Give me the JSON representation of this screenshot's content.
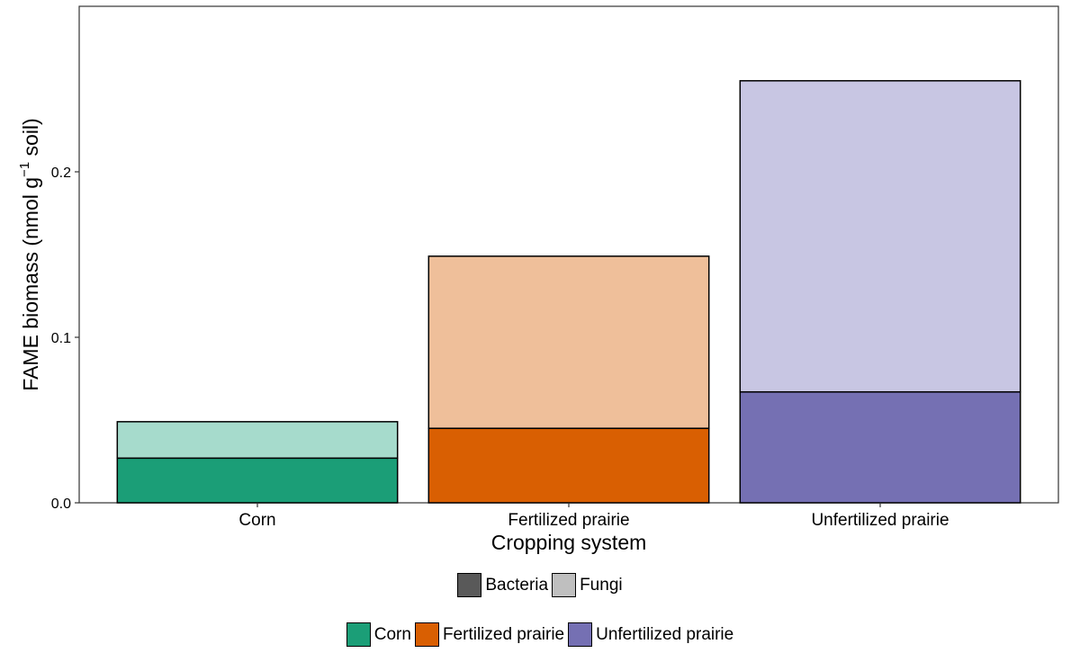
{
  "chart_data": {
    "type": "bar",
    "stacked": true,
    "categories": [
      "Corn",
      "Fertilized prairie",
      "Unfertilized prairie"
    ],
    "series": [
      {
        "name": "Bacteria",
        "values": [
          0.027,
          0.045,
          0.067
        ]
      },
      {
        "name": "Fungi",
        "values": [
          0.022,
          0.104,
          0.188
        ]
      }
    ],
    "totals": [
      0.049,
      0.149,
      0.255
    ],
    "xlabel": "Cropping system",
    "ylabel": {
      "main": "FAME biomass (nmol g",
      "superscript": "−1",
      "suffix": " soil)"
    },
    "ylim": [
      0,
      0.3
    ],
    "y_ticks": [
      0.0,
      0.1,
      0.2
    ],
    "y_tick_labels": [
      "0.0",
      "0.1",
      "0.2"
    ],
    "grid": false,
    "legend_position": "bottom",
    "legends": [
      {
        "title": "",
        "entries": [
          {
            "label": "Bacteria",
            "color": "#595959"
          },
          {
            "label": "Fungi",
            "color": "#bfbfbf"
          }
        ]
      },
      {
        "title": "",
        "entries": [
          {
            "label": "Corn",
            "color": "#1b9e77"
          },
          {
            "label": "Fertilized prairie",
            "color": "#d95f02"
          },
          {
            "label": "Unfertilized prairie",
            "color": "#7570b3"
          }
        ]
      }
    ],
    "colors": {
      "Corn": {
        "Bacteria": "#1b9e77",
        "Fungi": "#a6dbcc"
      },
      "Fertilized prairie": {
        "Bacteria": "#d95f02",
        "Fungi": "#efbf9a"
      },
      "Unfertilized prairie": {
        "Bacteria": "#7570b3",
        "Fungi": "#c8c6e3"
      }
    }
  }
}
